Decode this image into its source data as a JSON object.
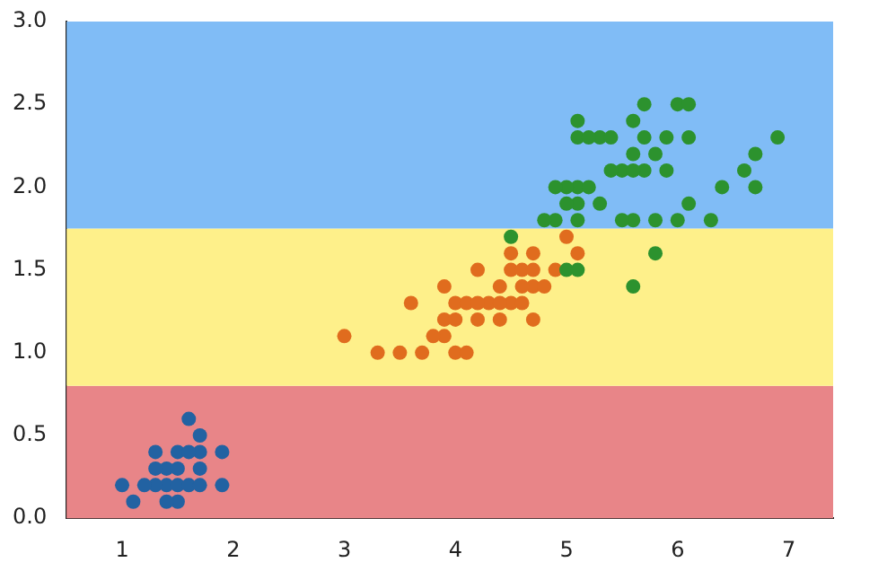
{
  "chart_data": {
    "type": "scatter",
    "marker": "circle",
    "grid": false,
    "legend": false,
    "xlim": [
      0.5,
      7.4
    ],
    "xticks": [
      1,
      2,
      3,
      4,
      5,
      6,
      7
    ],
    "ylim": [
      0,
      3
    ],
    "yticks": [
      {
        "value": 0,
        "label": "0.0"
      },
      {
        "value": 0.5,
        "label": "0.5"
      },
      {
        "value": 1,
        "label": "1.0"
      },
      {
        "value": 1.5,
        "label": "1.5"
      },
      {
        "value": 2,
        "label": "2.0"
      },
      {
        "value": 2.5,
        "label": "2.5"
      },
      {
        "value": 3,
        "label": "3.0"
      }
    ],
    "bands": [
      {
        "axis": "y",
        "from": 0,
        "to": 0.8,
        "color": "#e88588"
      },
      {
        "axis": "y",
        "from": 0.8,
        "to": 1.75,
        "color": "#fef08a"
      },
      {
        "axis": "y",
        "from": 1.75,
        "to": 3,
        "color": "#80bcf6"
      }
    ],
    "series": [
      {
        "color": "#2262a2",
        "x": [
          1.4,
          1.3,
          1.5,
          1.7,
          1.4,
          1.5,
          1.6,
          1.4,
          1.1,
          1.2,
          1.5,
          1.3,
          1.7,
          1.5,
          1.7,
          1.0,
          1.7,
          1.9,
          1.6,
          1.3,
          1.6,
          1.9
        ],
        "values": [
          0.2,
          0.2,
          0.2,
          0.4,
          0.3,
          0.1,
          0.2,
          0.1,
          0.1,
          0.2,
          0.4,
          0.4,
          0.3,
          0.3,
          0.2,
          0.2,
          0.5,
          0.2,
          0.4,
          0.3,
          0.6,
          0.4
        ]
      },
      {
        "color": "#e06c1e",
        "x": [
          4.7,
          4.5,
          4.9,
          4.0,
          4.6,
          4.5,
          4.7,
          3.3,
          4.6,
          3.9,
          3.5,
          4.2,
          4.0,
          3.6,
          4.4,
          4.1,
          3.9,
          4.7,
          4.3,
          4.8,
          5.0,
          3.8,
          3.7,
          3.9,
          5.1,
          4.5,
          4.7,
          4.4,
          4.1,
          4.4,
          4.6,
          4.0,
          4.2,
          4.2,
          3.0
        ],
        "values": [
          1.4,
          1.5,
          1.5,
          1.3,
          1.5,
          1.3,
          1.6,
          1.0,
          1.3,
          1.4,
          1.0,
          1.5,
          1.0,
          1.3,
          1.4,
          1.0,
          1.1,
          1.2,
          1.3,
          1.4,
          1.7,
          1.1,
          1.0,
          1.2,
          1.6,
          1.6,
          1.5,
          1.3,
          1.3,
          1.2,
          1.4,
          1.2,
          1.3,
          1.2,
          1.1
        ]
      },
      {
        "color": "#2c922e",
        "x": [
          6.0,
          5.1,
          5.9,
          5.6,
          5.8,
          6.6,
          4.5,
          6.3,
          5.8,
          6.1,
          5.1,
          5.3,
          5.5,
          5.0,
          5.1,
          5.3,
          5.5,
          6.7,
          6.9,
          5.0,
          5.7,
          4.9,
          6.7,
          4.9,
          5.7,
          6.0,
          4.8,
          5.6,
          5.8,
          6.1,
          6.4,
          5.6,
          5.1,
          5.6,
          6.1,
          5.6,
          5.4,
          5.1,
          5.9,
          5.7,
          5.2,
          5.0,
          5.2,
          5.4,
          5.1
        ],
        "values": [
          2.5,
          1.9,
          2.1,
          1.8,
          2.2,
          2.1,
          1.7,
          1.8,
          1.8,
          2.5,
          2.0,
          1.9,
          2.1,
          2.0,
          2.4,
          2.3,
          1.8,
          2.2,
          2.3,
          1.5,
          2.3,
          2.0,
          2.0,
          1.8,
          2.1,
          1.8,
          1.8,
          2.1,
          1.6,
          1.9,
          2.0,
          2.2,
          1.5,
          1.4,
          2.3,
          2.4,
          2.1,
          2.3,
          2.3,
          2.5,
          2.3,
          1.9,
          2.0,
          2.3,
          1.8
        ]
      }
    ]
  }
}
